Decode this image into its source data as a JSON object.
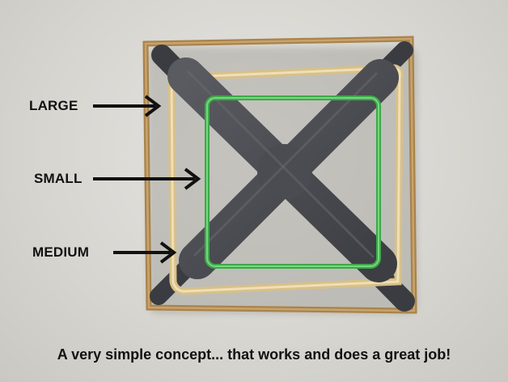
{
  "labels": {
    "large": "LARGE",
    "small": "SMALL",
    "medium": "MEDIUM"
  },
  "caption": "A very simple concept... that works and does a great job!",
  "colors": {
    "background": "#d9d8d3",
    "frame_plastic": "#4a4b50",
    "large_band": "#b8925a",
    "medium_band": "#e3cf9e",
    "small_band": "#4fc05a",
    "text": "#111111"
  }
}
